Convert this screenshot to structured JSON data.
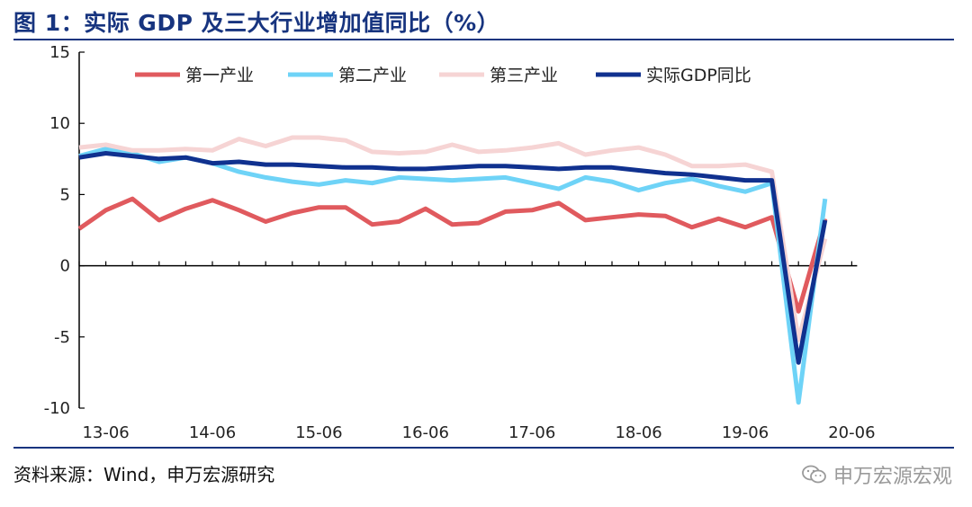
{
  "header": {
    "title": "图 1：实际 GDP 及三大行业增加值同比（%）"
  },
  "footer": {
    "source": "资料来源：Wind，申万宏源研究",
    "watermark": "申万宏源宏观",
    "watermark_icon": "wechat-icon"
  },
  "colors": {
    "accent": "#17347f",
    "s1": "#e05a5e",
    "s2": "#6ed3f7",
    "s3": "#f6d4d4",
    "gdp": "#10318f"
  },
  "chart_data": {
    "type": "line",
    "title": "",
    "xlabel": "",
    "ylabel": "",
    "ylim": [
      -10,
      15
    ],
    "yticks": [
      15,
      10,
      5,
      0,
      -5,
      -10
    ],
    "xtick_labels": [
      "13-06",
      "14-06",
      "15-06",
      "16-06",
      "17-06",
      "18-06",
      "19-06",
      "20-06"
    ],
    "x": [
      "13-03",
      "13-06",
      "13-09",
      "13-12",
      "14-03",
      "14-06",
      "14-09",
      "14-12",
      "15-03",
      "15-06",
      "15-09",
      "15-12",
      "16-03",
      "16-06",
      "16-09",
      "16-12",
      "17-03",
      "17-06",
      "17-09",
      "17-12",
      "18-03",
      "18-06",
      "18-09",
      "18-12",
      "19-03",
      "19-06",
      "19-09",
      "19-12",
      "20-03",
      "20-06"
    ],
    "legend_position": "top",
    "grid": false,
    "series": [
      {
        "name": "第一产业",
        "color": "#e05a5e",
        "values": [
          2.6,
          3.9,
          4.7,
          3.2,
          4.0,
          4.6,
          3.9,
          3.1,
          3.7,
          4.1,
          4.1,
          2.9,
          3.1,
          4.0,
          2.9,
          3.0,
          3.8,
          3.9,
          4.4,
          3.2,
          3.4,
          3.6,
          3.5,
          2.7,
          3.3,
          2.7,
          3.4,
          -3.2,
          3.3,
          null
        ]
      },
      {
        "name": "第二产业",
        "color": "#6ed3f7",
        "values": [
          7.7,
          8.2,
          7.9,
          7.3,
          7.6,
          7.2,
          6.6,
          6.2,
          5.9,
          5.7,
          6.0,
          5.8,
          6.2,
          6.1,
          6.0,
          6.1,
          6.2,
          5.8,
          5.4,
          6.2,
          5.9,
          5.3,
          5.8,
          6.1,
          5.6,
          5.2,
          5.8,
          -9.6,
          4.7,
          null
        ]
      },
      {
        "name": "第三产业",
        "color": "#f6d4d4",
        "values": [
          8.3,
          8.5,
          8.1,
          8.1,
          8.2,
          8.1,
          8.9,
          8.4,
          9.0,
          9.0,
          8.8,
          8.0,
          7.9,
          8.0,
          8.5,
          8.0,
          8.1,
          8.3,
          8.6,
          7.8,
          8.1,
          8.3,
          7.8,
          7.0,
          7.0,
          7.1,
          6.6,
          -5.2,
          1.9,
          null
        ]
      },
      {
        "name": "实际GDP同比",
        "color": "#10318f",
        "values": [
          7.6,
          7.9,
          7.7,
          7.5,
          7.6,
          7.2,
          7.3,
          7.1,
          7.1,
          7.0,
          6.9,
          6.9,
          6.8,
          6.8,
          6.9,
          7.0,
          7.0,
          6.9,
          6.8,
          6.9,
          6.9,
          6.7,
          6.5,
          6.4,
          6.2,
          6.0,
          6.0,
          -6.8,
          3.2,
          null
        ]
      }
    ]
  }
}
